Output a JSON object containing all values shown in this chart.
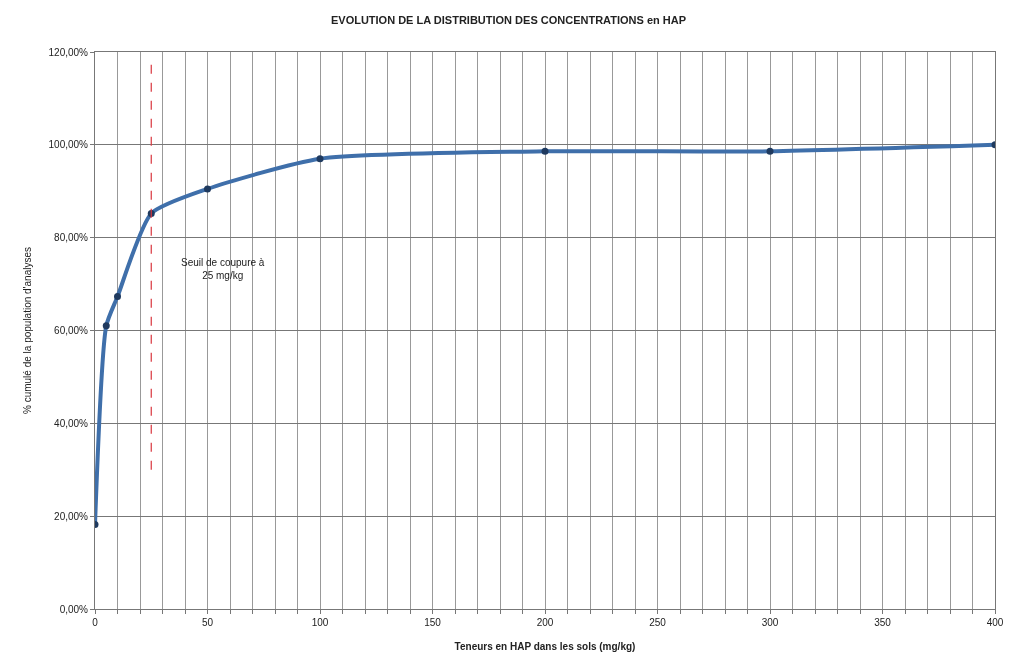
{
  "chart_data": {
    "type": "line",
    "title": "EVOLUTION DE LA DISTRIBUTION DES CONCENTRATIONS en HAP",
    "xlabel": "Teneurs en HAP dans les sols (mg/kg)",
    "ylabel": "% cumulé de la population d'analyses",
    "x": [
      0,
      5,
      10,
      25,
      50,
      100,
      200,
      300,
      400
    ],
    "series": [
      {
        "color": "#3f6faa",
        "values": [
          18.2,
          61,
          67.3,
          85.2,
          90.5,
          97,
          98.6,
          98.6,
          100
        ]
      }
    ],
    "xlim": [
      0,
      400
    ],
    "xticks": [
      0,
      {
        "value": 10,
        "label": null
      },
      {
        "value": 20,
        "label": null
      },
      {
        "value": 30,
        "label": null
      },
      {
        "value": 40,
        "label": null
      },
      50,
      {
        "value": 60,
        "label": null
      },
      {
        "value": 70,
        "label": null
      },
      {
        "value": 80,
        "label": null
      },
      {
        "value": 90,
        "label": null
      },
      100,
      {
        "value": 110,
        "label": null
      },
      {
        "value": 120,
        "label": null
      },
      {
        "value": 130,
        "label": null
      },
      {
        "value": 140,
        "label": null
      },
      150,
      {
        "value": 160,
        "label": null
      },
      {
        "value": 170,
        "label": null
      },
      {
        "value": 180,
        "label": null
      },
      {
        "value": 190,
        "label": null
      },
      200,
      {
        "value": 210,
        "label": null
      },
      {
        "value": 220,
        "label": null
      },
      {
        "value": 230,
        "label": null
      },
      {
        "value": 240,
        "label": null
      },
      250,
      {
        "value": 260,
        "label": null
      },
      {
        "value": 270,
        "label": null
      },
      {
        "value": 280,
        "label": null
      },
      {
        "value": 290,
        "label": null
      },
      300,
      {
        "value": 310,
        "label": null
      },
      {
        "value": 320,
        "label": null
      },
      {
        "value": 330,
        "label": null
      },
      {
        "value": 340,
        "label": null
      },
      350,
      {
        "value": 360,
        "label": null
      },
      {
        "value": 370,
        "label": null
      },
      {
        "value": 380,
        "label": null
      },
      {
        "value": 390,
        "label": null
      },
      400
    ],
    "ylim": [
      0,
      120
    ],
    "yticks": [
      {
        "value": 0,
        "label": "0,00%"
      },
      {
        "value": 20,
        "label": "20,00%"
      },
      {
        "value": 40,
        "label": "40,00%"
      },
      {
        "value": 60,
        "label": "60,00%"
      },
      {
        "value": 80,
        "label": "80,00%"
      },
      {
        "value": 100,
        "label": "100,00%"
      },
      {
        "value": 120,
        "label": "120,00%"
      }
    ],
    "ref_lines": [
      {
        "axis": "x",
        "value": 25,
        "label": "Seuil de coupure à\n25 mg/kg",
        "color": "#d9363e",
        "line_style": "dashed"
      }
    ],
    "grid": true,
    "marker": "circle",
    "line_style": "solid"
  }
}
